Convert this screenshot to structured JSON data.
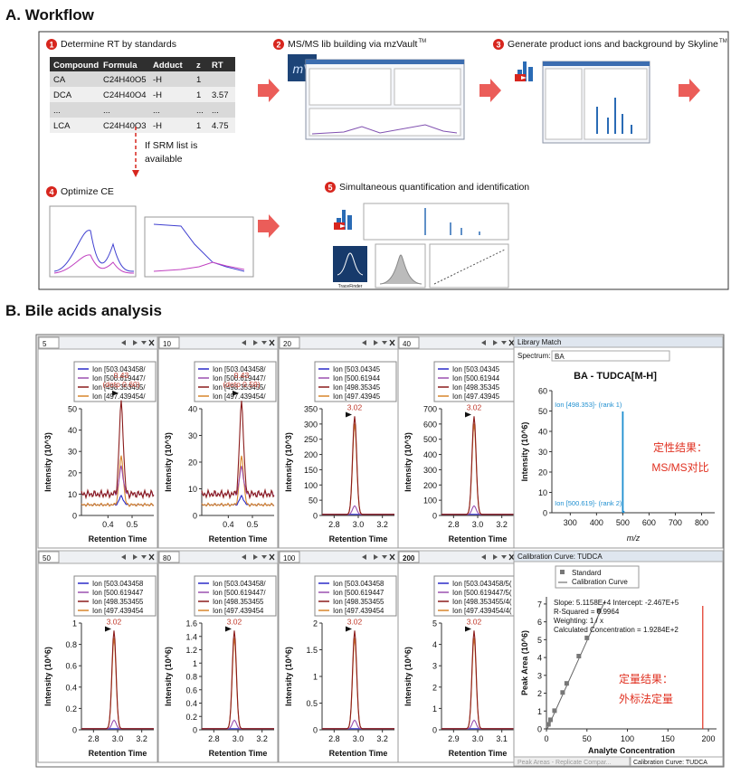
{
  "section_a": {
    "title": "A. Workflow",
    "steps": [
      {
        "number": "1",
        "label": "Determine RT by standards"
      },
      {
        "number": "2",
        "label": "MS/MS lib building via mzVault",
        "sup": "TM"
      },
      {
        "number": "3",
        "label": "Generate product ions and background by Skyline",
        "sup": "TM"
      },
      {
        "number": "4",
        "label": "Optimize CE"
      },
      {
        "number": "5",
        "label": "Simultaneous quantification and identification"
      }
    ],
    "table": {
      "header": [
        "Compound",
        "Formula",
        "Adduct",
        "z",
        "RT"
      ],
      "rows": [
        [
          "CA",
          "C24H40O5",
          "-H",
          "1",
          null
        ],
        [
          "DCA",
          "C24H40O4",
          "-H",
          "1",
          "3.57"
        ],
        [
          "...",
          "...",
          "...",
          "...",
          "..."
        ],
        [
          "LCA",
          "C24H40O3",
          "-H",
          "1",
          "4.75"
        ]
      ]
    },
    "note": [
      "If SRM list is",
      "available"
    ],
    "mzvault_logo": "mV",
    "tracefinder_logo": "TraceFinder"
  },
  "section_b": {
    "title": "B. Bile acids analysis",
    "panels": [
      {
        "tab": "5",
        "legend": [
          "Ion [503.043458/",
          "Ion [500.619447/",
          "Ion [498.353455/",
          "Ion [497.439454/"
        ],
        "peak_label": "0.43",
        "peak_note": "(dotp 0.60)",
        "y_label": "Intensity (10^3)",
        "yticks": [
          "0",
          "10",
          "20",
          "30",
          "40",
          "50"
        ],
        "xticks": [
          "0.4",
          "0.5"
        ],
        "x_label": "Retention Time"
      },
      {
        "tab": "10",
        "legend": [
          "Ion [503.043458/",
          "Ion [500.619447/",
          "Ion [498.353455/",
          "Ion [497.439454/"
        ],
        "peak_label": "0.43",
        "peak_note": "(dotp 0.59)",
        "y_label": "Intensity (10^3)",
        "yticks": [
          "0",
          "10",
          "20",
          "30",
          "40"
        ],
        "xticks": [
          "0.4",
          "0.5"
        ],
        "x_label": "Retention Time"
      },
      {
        "tab": "20",
        "legend": [
          "Ion [503.04345",
          "Ion [500.61944",
          "Ion [498.35345",
          "Ion [497.43945"
        ],
        "peak_label": "3.02",
        "y_label": "Intensity (10^3)",
        "yticks": [
          "0",
          "50",
          "100",
          "150",
          "200",
          "250",
          "300",
          "350"
        ],
        "xticks": [
          "2.8",
          "3.0",
          "3.2"
        ],
        "x_label": "Retention Time"
      },
      {
        "tab": "40",
        "legend": [
          "Ion [503.04345",
          "Ion [500.61944",
          "Ion [498.35345",
          "Ion [497.43945"
        ],
        "peak_label": "3.02",
        "y_label": "Intensity (10^3)",
        "yticks": [
          "0",
          "100",
          "200",
          "300",
          "400",
          "500",
          "600",
          "700"
        ],
        "xticks": [
          "2.8",
          "3.0",
          "3.2"
        ],
        "x_label": "Retention Time"
      },
      {
        "tab": "50",
        "legend": [
          "Ion [503.043458",
          "Ion [500.619447",
          "Ion [498.353455",
          "Ion [497.439454"
        ],
        "peak_label": "3.02",
        "y_label": "Intensity (10^6)",
        "yticks": [
          "0",
          "0.2",
          "0.4",
          "0.6",
          "0.8",
          "1"
        ],
        "xticks": [
          "2.8",
          "3.0",
          "3.2"
        ],
        "x_label": "Retention Time"
      },
      {
        "tab": "80",
        "legend": [
          "Ion [503.043458/",
          "Ion [500.619447/",
          "Ion [498.353455",
          "Ion [497.439454"
        ],
        "peak_label": "3.02",
        "y_label": "Intensity (10^6)",
        "yticks": [
          "0",
          "0.2",
          "0.4",
          "0.6",
          "0.8",
          "1",
          "1.2",
          "1.4",
          "1.6"
        ],
        "xticks": [
          "2.8",
          "3.0",
          "3.2"
        ],
        "x_label": "Retention Time"
      },
      {
        "tab": "100",
        "legend": [
          "Ion [503.043458",
          "Ion [500.619447",
          "Ion [498.353455",
          "Ion [497.439454"
        ],
        "peak_label": "3.02",
        "y_label": "Intensity (10^6)",
        "yticks": [
          "0",
          "0.5",
          "1",
          "1.5",
          "2"
        ],
        "xticks": [
          "2.8",
          "3.0",
          "3.2"
        ],
        "x_label": "Retention Time"
      },
      {
        "tab": "200",
        "legend": [
          "Ion [503.043458/5(",
          "Ion [500.619447/5(",
          "Ion [498.353455/4(",
          "Ion [497.439454/4("
        ],
        "peak_label": "3.02",
        "y_label": "Intensity (10^6)",
        "yticks": [
          "0",
          "1",
          "2",
          "3",
          "4",
          "5"
        ],
        "xticks": [
          "2.9",
          "3.0",
          "3.1"
        ],
        "x_label": "Retention Time"
      }
    ],
    "library": {
      "header": "Library Match",
      "spectrum_label": "Spectrum:",
      "spectrum_value": "BA",
      "title": "BA - TUDCA[M-H]",
      "y_label": "Intensity (10^6)",
      "yticks": [
        "0",
        "10",
        "20",
        "30",
        "40",
        "50",
        "60"
      ],
      "xticks": [
        "300",
        "400",
        "500",
        "600",
        "700",
        "800"
      ],
      "x_label": "m/z",
      "rank1": "Ion [498.353]- (rank 1)",
      "rank2": "Ion [500.619]- (rank 2)",
      "annotation": [
        "定性结果：",
        "MS/MS对比"
      ]
    },
    "calibration": {
      "header": "Calibration Curve: TUDCA",
      "legend": [
        "Standard",
        "Calibration Curve"
      ],
      "stats": [
        "Slope: 5.1158E+4 Intercept: -2.467E+5",
        "R-Squared = 0.9964",
        "Weighting: 1 / x",
        "Calculated Concentration = 1.9284E+2"
      ],
      "y_label": "Peak Area (10^6)",
      "yticks": [
        "0",
        "1",
        "2",
        "3",
        "4",
        "5",
        "6",
        "7"
      ],
      "xticks": [
        "0",
        "50",
        "100",
        "150",
        "200"
      ],
      "x_label": "Analyte Concentration",
      "annotation": [
        "定量结果：",
        "外标法定量"
      ],
      "tabs": [
        "Peak Areas - Replicate Compar...",
        "Calibration Curve: TUDCA"
      ]
    }
  }
}
